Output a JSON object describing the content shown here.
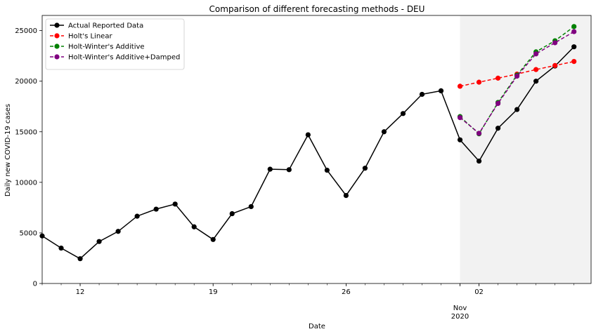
{
  "chart_data": {
    "type": "line",
    "title": "Comparison of different forecasting methods - DEU",
    "xlabel": "Date",
    "ylabel": "Daily new COVID-19 cases",
    "x_range": [
      "2020-10-10",
      "2020-11-07"
    ],
    "ylim": [
      0,
      26500
    ],
    "y_ticks": [
      0,
      5000,
      10000,
      15000,
      20000,
      25000
    ],
    "x_major_ticks": [
      {
        "date": "2020-10-12",
        "label": "12"
      },
      {
        "date": "2020-10-19",
        "label": "19"
      },
      {
        "date": "2020-10-26",
        "label": "26"
      },
      {
        "date": "2020-11-02",
        "label": "02"
      }
    ],
    "x_secondary_label": {
      "date": "2020-11-01",
      "line1": "Nov",
      "line2": "2020"
    },
    "forecast_region": {
      "start": "2020-11-01",
      "end": "2020-11-07",
      "color": "#f2f2f2"
    },
    "grid": false,
    "legend_position": "top-left",
    "series": [
      {
        "name": "Actual Reported Data",
        "color": "#000000",
        "style": "solid",
        "x": [
          "2020-10-10",
          "2020-10-11",
          "2020-10-12",
          "2020-10-13",
          "2020-10-14",
          "2020-10-15",
          "2020-10-16",
          "2020-10-17",
          "2020-10-18",
          "2020-10-19",
          "2020-10-20",
          "2020-10-21",
          "2020-10-22",
          "2020-10-23",
          "2020-10-24",
          "2020-10-25",
          "2020-10-26",
          "2020-10-27",
          "2020-10-28",
          "2020-10-29",
          "2020-10-30",
          "2020-10-31",
          "2020-11-01",
          "2020-11-02",
          "2020-11-03",
          "2020-11-04",
          "2020-11-05",
          "2020-11-06",
          "2020-11-07"
        ],
        "values": [
          4700,
          3500,
          2450,
          4150,
          5150,
          6650,
          7350,
          7850,
          5600,
          4350,
          6900,
          7600,
          11300,
          11250,
          14700,
          11200,
          8700,
          11400,
          15000,
          16800,
          18700,
          19050,
          14200,
          12100,
          15350,
          17200,
          20000,
          21500,
          23400
        ]
      },
      {
        "name": "Holt's Linear",
        "color": "#ff0000",
        "style": "dashed",
        "x": [
          "2020-11-01",
          "2020-11-02",
          "2020-11-03",
          "2020-11-04",
          "2020-11-05",
          "2020-11-06",
          "2020-11-07"
        ],
        "values": [
          19500,
          19900,
          20300,
          20700,
          21150,
          21550,
          21950
        ]
      },
      {
        "name": "Holt-Winter's Additive",
        "color": "#008000",
        "style": "dashed",
        "x": [
          "2020-11-01",
          "2020-11-02",
          "2020-11-03",
          "2020-11-04",
          "2020-11-05",
          "2020-11-06",
          "2020-11-07"
        ],
        "values": [
          16500,
          14800,
          17900,
          20600,
          22900,
          24000,
          25400
        ]
      },
      {
        "name": "Holt-Winter's Additive+Damped",
        "color": "#800080",
        "style": "dashed",
        "x": [
          "2020-11-01",
          "2020-11-02",
          "2020-11-03",
          "2020-11-04",
          "2020-11-05",
          "2020-11-06",
          "2020-11-07"
        ],
        "values": [
          16400,
          14850,
          17800,
          20500,
          22700,
          23800,
          24900
        ]
      }
    ]
  }
}
